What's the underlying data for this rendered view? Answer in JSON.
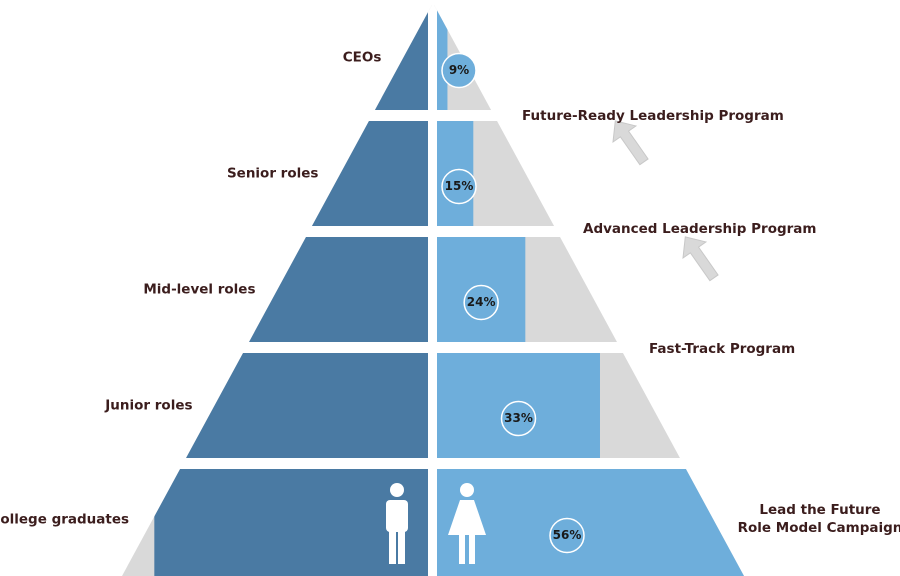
{
  "chart_data": {
    "type": "pyramid",
    "categories": [
      "CEOs",
      "Senior roles",
      "Mid-level roles",
      "Junior roles",
      "College graduates"
    ],
    "values": [
      9,
      15,
      24,
      33,
      56
    ],
    "value_labels": [
      "9%",
      "15%",
      "24%",
      "33%",
      "56%"
    ],
    "colors": {
      "women": "#6eaedb",
      "men": "#4a7aa3",
      "rest": "#d9d9d9"
    },
    "annotations": [
      [
        "Future-Ready Leadership Program"
      ],
      [
        "Advanced Leadership Program"
      ],
      [
        "Fast-Track Program"
      ],
      [
        "Lead the Future",
        "Role Model Campaign"
      ]
    ]
  }
}
